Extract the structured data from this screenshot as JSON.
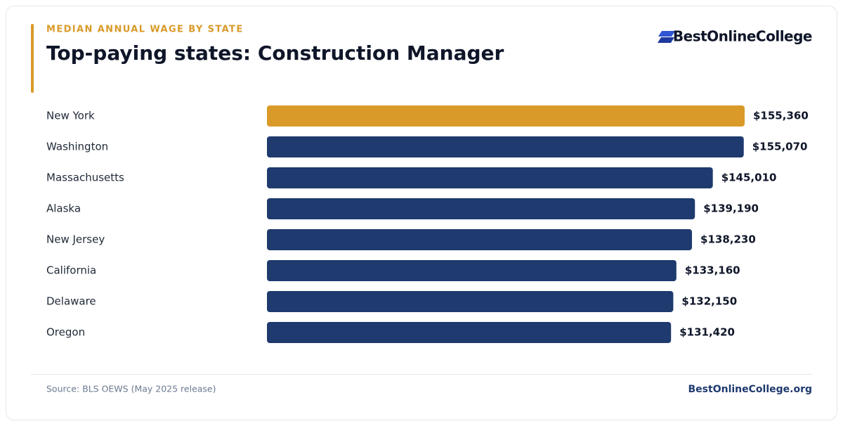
{
  "chart_data": {
    "type": "bar",
    "subtitle": "MEDIAN ANNUAL WAGE BY STATE",
    "title": "Top-paying states: Construction Manager",
    "brand": "BestOnlineCollege",
    "categories": [
      "New York",
      "Washington",
      "Massachusetts",
      "Alaska",
      "New Jersey",
      "California",
      "Delaware",
      "Oregon"
    ],
    "values": [
      155360,
      155070,
      145010,
      139190,
      138230,
      133160,
      132150,
      131420
    ],
    "value_labels": [
      "$155,360",
      "$155,070",
      "$145,010",
      "$139,190",
      "$138,230",
      "$133,160",
      "$132,150",
      "$131,420"
    ],
    "colors": [
      "#d99a29",
      "#1e3a6e",
      "#1e3a6e",
      "#1e3a6e",
      "#1e3a6e",
      "#1e3a6e",
      "#1e3a6e",
      "#1e3a6e"
    ],
    "source": "Source: BLS OEWS (May 2025 release)",
    "footer_link": "BestOnlineCollege.org"
  }
}
